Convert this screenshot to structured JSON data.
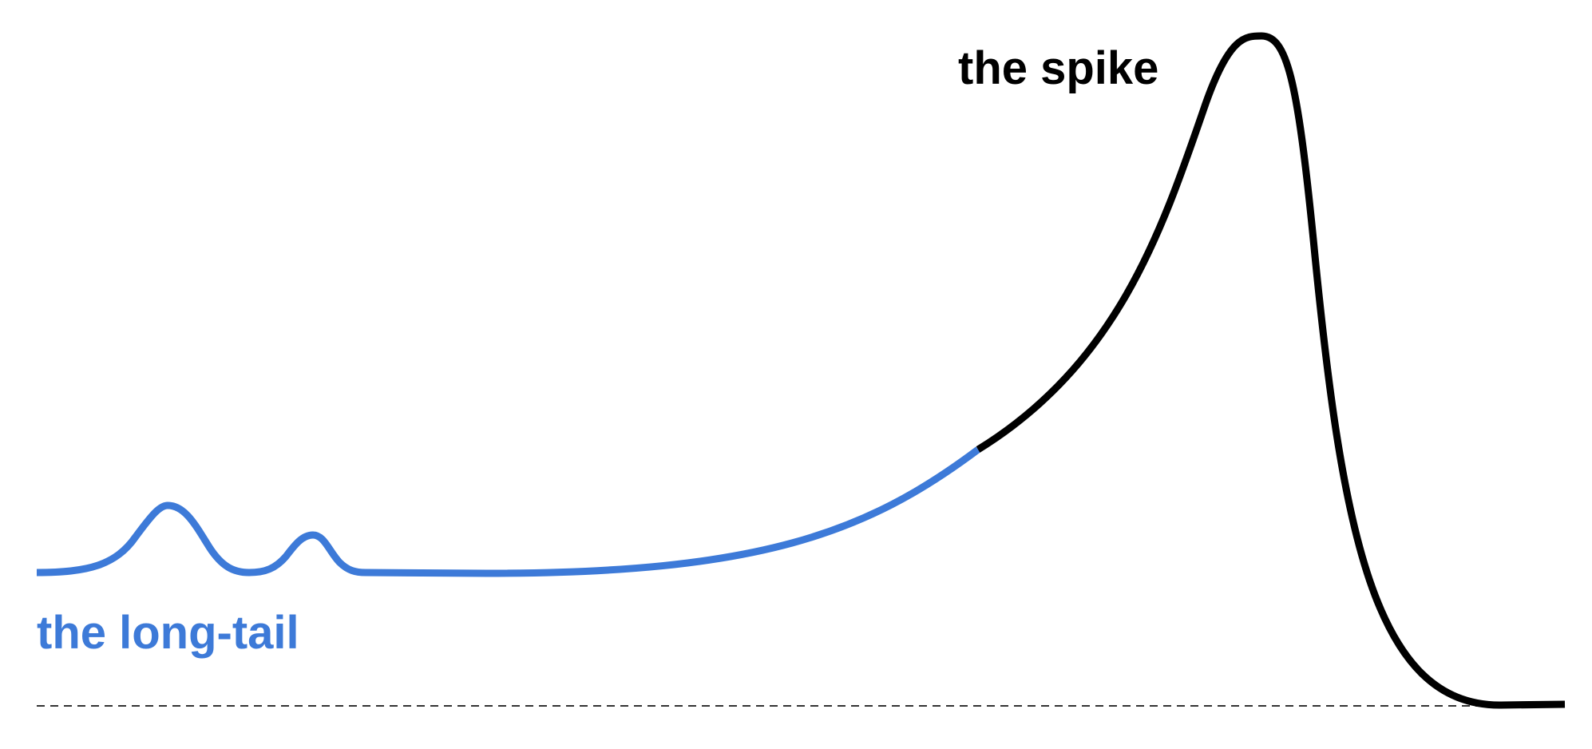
{
  "labels": {
    "spike": "the spike",
    "long_tail": "the long-tail"
  },
  "colors": {
    "long_tail": "#3d7ad8",
    "spike": "#000000",
    "baseline": "#333333",
    "background": "#ffffff"
  },
  "baseline": {
    "style": "dashed"
  }
}
